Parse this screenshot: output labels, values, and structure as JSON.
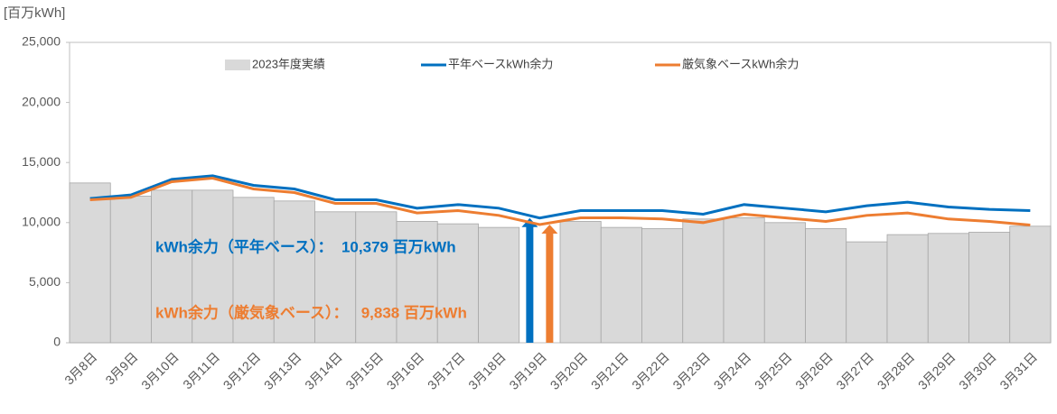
{
  "chart_data": {
    "type": "bar-line",
    "y_axis_label": "[百万kWh]",
    "categories": [
      "3月8日",
      "3月9日",
      "3月10日",
      "3月11日",
      "3月12日",
      "3月13日",
      "3月14日",
      "3月15日",
      "3月16日",
      "3月17日",
      "3月18日",
      "3月19日",
      "3月20日",
      "3月21日",
      "3月22日",
      "3月23日",
      "3月24日",
      "3月25日",
      "3月26日",
      "3月27日",
      "3月28日",
      "3月29日",
      "3月30日",
      "3月31日"
    ],
    "series": [
      {
        "name": "2023年度実績",
        "type": "bar",
        "color": "#d9d9d9",
        "values": [
          13300,
          12200,
          12700,
          12700,
          12100,
          11800,
          10900,
          10900,
          10100,
          9900,
          9600,
          null,
          10100,
          9600,
          9500,
          10300,
          10400,
          10000,
          9500,
          8400,
          9000,
          9100,
          9200,
          9700
        ]
      },
      {
        "name": "平年ベースkWh余力",
        "type": "line",
        "color": "#0070c0",
        "values": [
          12000,
          12300,
          13600,
          13900,
          13100,
          12800,
          11900,
          11900,
          11200,
          11500,
          11200,
          10379,
          11000,
          11000,
          11000,
          10700,
          11500,
          11200,
          10900,
          11400,
          11700,
          11300,
          11100,
          11000
        ]
      },
      {
        "name": "厳気象ベースkWh余力",
        "type": "line",
        "color": "#ed7d31",
        "values": [
          11900,
          12100,
          13400,
          13700,
          12800,
          12500,
          11600,
          11600,
          10800,
          11000,
          10600,
          9838,
          10400,
          10400,
          10300,
          10000,
          10700,
          10400,
          10100,
          10600,
          10800,
          10300,
          10100,
          9800
        ]
      }
    ],
    "annotations": [
      {
        "text": "kWh余力（平年ベース）：  10,379 百万kWh",
        "color": "#0070c0"
      },
      {
        "text": "kWh余力（厳気象ベース）：   9,838 百万kWh",
        "color": "#ed7d31"
      }
    ],
    "highlight_index": 11,
    "ylim": [
      0,
      25000
    ],
    "yticks": [
      0,
      {
        "value": 5000,
        "label": "5,000"
      },
      {
        "value": 10000,
        "label": "10,000"
      },
      {
        "value": 15000,
        "label": "15,000"
      },
      {
        "value": 20000,
        "label": "20,000"
      },
      {
        "value": 25000,
        "label": "25,000"
      }
    ],
    "grid": false,
    "legend": "top"
  }
}
